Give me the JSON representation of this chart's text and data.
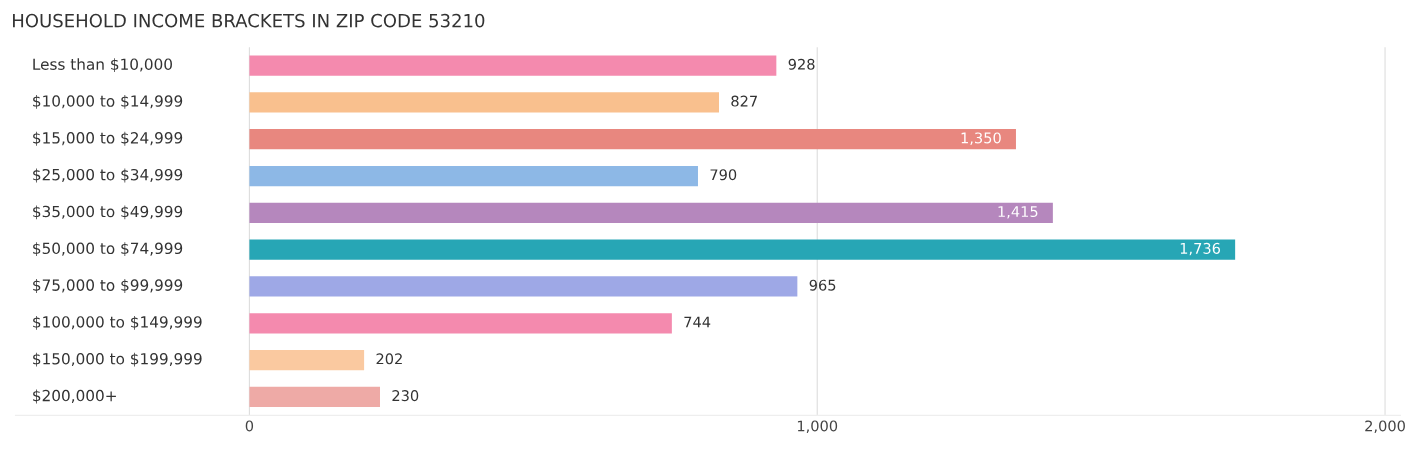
{
  "chart_data": {
    "type": "bar",
    "orientation": "horizontal",
    "title": "HOUSEHOLD INCOME BRACKETS IN ZIP CODE 53210",
    "categories": [
      "Less than $10,000",
      "$10,000 to $14,999",
      "$15,000 to $24,999",
      "$25,000 to $34,999",
      "$35,000 to $49,999",
      "$50,000 to $74,999",
      "$75,000 to $99,999",
      "$100,000 to $149,999",
      "$150,000 to $199,999",
      "$200,000+"
    ],
    "values": [
      928,
      827,
      1350,
      790,
      1415,
      1736,
      965,
      744,
      202,
      230
    ],
    "value_labels": [
      "928",
      "827",
      "1,350",
      "790",
      "1,415",
      "1,736",
      "965",
      "744",
      "202",
      "230"
    ],
    "colors": [
      "#f48aae",
      "#f9c08e",
      "#e8877f",
      "#8db8e6",
      "#b587bd",
      "#27a6b5",
      "#9ea8e6",
      "#f48aae",
      "#fac9a0",
      "#eeaaa6"
    ],
    "xlim": [
      -412,
      2027
    ],
    "xticks": [
      {
        "value": 0,
        "label": "0"
      },
      {
        "value": 1000,
        "label": "1,000"
      },
      {
        "value": 2000,
        "label": "2,000"
      }
    ],
    "grid": "x"
  }
}
